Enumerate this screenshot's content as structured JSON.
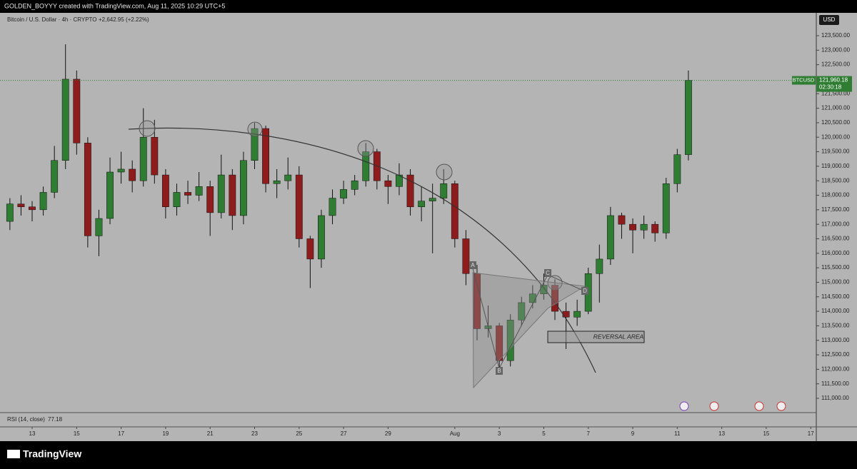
{
  "header": "GOLDEN_BOYYY created with TradingView.com, Aug 11, 2025 10:29 UTC+5",
  "footer": {
    "brand": "TradingView"
  },
  "chart_data": {
    "type": "candlestick",
    "title": "Bitcoin / U.S. Dollar · 4h · CRYPTO",
    "change": "+2,642.95 (+2.22%)",
    "currency": "USD",
    "up_color": "#2e7d32",
    "down_color": "#8e1c1c",
    "x": [
      12,
      12.5,
      13,
      13.5,
      14,
      14.5,
      15,
      15.5,
      16,
      16.5,
      17,
      17.5,
      18,
      18.5,
      19,
      19.5,
      20,
      20.5,
      21,
      21.5,
      22,
      22.5,
      23,
      23.5,
      24,
      24.5,
      25,
      25.5,
      26,
      26.5,
      27,
      27.5,
      28,
      28.5,
      29,
      29.5,
      30,
      30.5,
      31,
      31.5,
      32,
      32.5,
      33,
      33.5,
      34,
      34.5,
      35,
      35.5,
      36,
      36.5,
      37,
      37.5,
      38,
      38.5,
      39,
      39.5,
      40,
      40.5,
      41,
      41.5,
      42,
      42.5
    ],
    "open": [
      117100,
      117700,
      117600,
      117500,
      118100,
      119200,
      122000,
      119800,
      116600,
      117200,
      118800,
      118900,
      118500,
      120000,
      118700,
      117600,
      118100,
      118000,
      118300,
      117400,
      118700,
      117300,
      119200,
      120300,
      118400,
      118500,
      118700,
      116500,
      115800,
      117300,
      117900,
      118200,
      118500,
      119500,
      118500,
      118300,
      118700,
      117600,
      117800,
      117900,
      118400,
      116500,
      115300,
      113400,
      113500,
      112300,
      113700,
      114300,
      114600,
      114900,
      114000,
      113800,
      114000,
      115300,
      115800,
      117300,
      117000,
      116800,
      117000,
      116700,
      118400,
      119400
    ],
    "high": [
      117900,
      118000,
      117800,
      118300,
      119700,
      123200,
      122300,
      120000,
      117500,
      119300,
      119500,
      119200,
      121000,
      120600,
      118900,
      118400,
      118500,
      118800,
      118500,
      119400,
      118900,
      119500,
      120500,
      120400,
      118900,
      119300,
      119000,
      116600,
      117500,
      118200,
      118500,
      118700,
      119800,
      119600,
      118700,
      119100,
      118900,
      118300,
      118400,
      118900,
      118500,
      116800,
      115600,
      114200,
      113600,
      113900,
      114500,
      114900,
      115300,
      115100,
      114300,
      114400,
      115500,
      116300,
      117600,
      117400,
      117200,
      117300,
      117100,
      118600,
      119600,
      122300
    ],
    "low": [
      116800,
      117300,
      117100,
      117300,
      117900,
      118900,
      119400,
      116200,
      115900,
      117000,
      118400,
      118100,
      118300,
      118400,
      117200,
      117300,
      117700,
      117800,
      116600,
      117200,
      116800,
      117000,
      118900,
      118100,
      117900,
      118200,
      116200,
      114800,
      115500,
      117000,
      117700,
      118000,
      118300,
      118200,
      117700,
      118000,
      117300,
      117100,
      116000,
      117700,
      116200,
      114900,
      113000,
      113100,
      111900,
      112100,
      113500,
      114100,
      114400,
      113700,
      112700,
      113500,
      113900,
      114300,
      115600,
      116500,
      116000,
      116500,
      116400,
      116500,
      118100,
      119200
    ],
    "close": [
      117700,
      117600,
      117500,
      118100,
      119200,
      122000,
      119800,
      116600,
      117200,
      118800,
      118900,
      118500,
      120000,
      118700,
      117600,
      118100,
      118000,
      118300,
      117400,
      118700,
      117300,
      119200,
      120300,
      118400,
      118500,
      118700,
      116500,
      115800,
      117300,
      117900,
      118200,
      118500,
      119500,
      118500,
      118300,
      118700,
      117600,
      117800,
      117900,
      118400,
      116500,
      115300,
      113400,
      113500,
      112300,
      113700,
      114300,
      114600,
      114900,
      114000,
      113800,
      114000,
      115300,
      115800,
      117300,
      117000,
      116800,
      117000,
      116700,
      118400,
      119400,
      121960.18
    ],
    "last_price": {
      "symbol": "BTCUSD",
      "value": 121960.18,
      "label": "121,960.18",
      "countdown": "02:30:18"
    },
    "xlim": [
      11.555,
      48.25
    ],
    "xticks": [
      13,
      15,
      17,
      19,
      21,
      23,
      25,
      27,
      29,
      {
        "value": 32,
        "label": "Aug"
      },
      {
        "value": 34,
        "label": "3"
      },
      {
        "value": 36,
        "label": "5"
      },
      {
        "value": 38,
        "label": "7"
      },
      {
        "value": 40,
        "label": "9"
      },
      {
        "value": 42,
        "label": "11"
      },
      {
        "value": 44,
        "label": "13"
      },
      {
        "value": 46,
        "label": "15"
      },
      {
        "value": 48,
        "label": "17"
      }
    ],
    "ylim": [
      110508,
      124287
    ],
    "yticks": [
      {
        "value": 111000,
        "label": "111,000.00"
      },
      {
        "value": 111500,
        "label": "111,500.00"
      },
      {
        "value": 112000,
        "label": "112,000.00"
      },
      {
        "value": 112500,
        "label": "112,500.00"
      },
      {
        "value": 113000,
        "label": "113,000.00"
      },
      {
        "value": 113500,
        "label": "113,500.00"
      },
      {
        "value": 114000,
        "label": "114,000.00"
      },
      {
        "value": 114500,
        "label": "114,500.00"
      },
      {
        "value": 115000,
        "label": "115,000.00"
      },
      {
        "value": 115500,
        "label": "115,500.00"
      },
      {
        "value": 116000,
        "label": "116,000.00"
      },
      {
        "value": 116500,
        "label": "116,500.00"
      },
      {
        "value": 117000,
        "label": "117,000.00"
      },
      {
        "value": 117500,
        "label": "117,500.00"
      },
      {
        "value": 118000,
        "label": "118,000.00"
      },
      {
        "value": 118500,
        "label": "118,500.00"
      },
      {
        "value": 119000,
        "label": "119,000.00"
      },
      {
        "value": 119500,
        "label": "119,500.00"
      },
      {
        "value": 120000,
        "label": "120,000.00"
      },
      {
        "value": 120500,
        "label": "120,500.00"
      },
      {
        "value": 121000,
        "label": "121,000.00"
      },
      {
        "value": 121500,
        "label": "121,500.00"
      },
      {
        "value": 122000,
        "label": "122,000.00"
      },
      {
        "value": 122500,
        "label": "122,500.00"
      },
      {
        "value": 123000,
        "label": "123,000.00"
      },
      {
        "value": 123500,
        "label": "123,500.00"
      }
    ],
    "indicator": {
      "name": "RSI (14, close)",
      "value": "77.18"
    },
    "annotations": {
      "zone": "REVERSAL AREA",
      "points": [
        "A",
        "B",
        "C",
        "D"
      ]
    }
  }
}
